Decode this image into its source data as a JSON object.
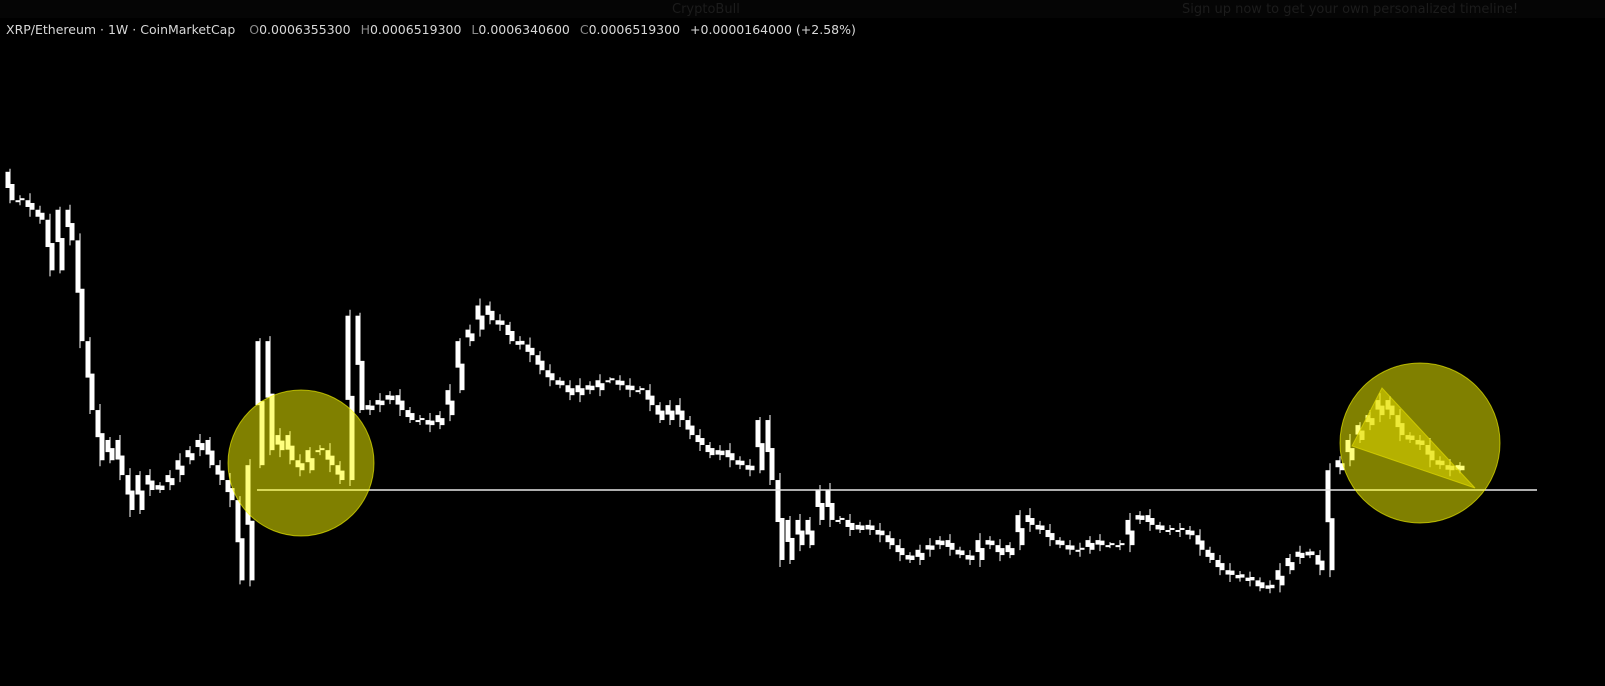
{
  "overlay": {
    "author": "CryptoBull",
    "signup_text": "Sign up now to get your own personalized timeline!"
  },
  "legend": {
    "symbol": "XRP/Ethereum · 1W · CoinMarketCap",
    "open_key": "O",
    "open": "0.0006355300",
    "high_key": "H",
    "high": "0.0006519300",
    "low_key": "L",
    "low": "0.0006340600",
    "close_key": "C",
    "close": "0.0006519300",
    "change": "+0.0000164000 (+2.58%)"
  },
  "colors": {
    "background": "#000000",
    "candle": "#ffffff",
    "highlight_circle": "#ffff00",
    "wedge": "#e0d800",
    "support_line": "#ffffff"
  },
  "chart_data": {
    "type": "candlestick",
    "title": "XRP/Ethereum · 1W · CoinMarketCap",
    "interval": "1W",
    "yscale": "log",
    "ylim": [
      0.0003,
      0.0035
    ],
    "grid": false,
    "closes": [
      0.0024,
      0.0024,
      0.00229,
      0.00218,
      0.0017,
      0.00229,
      0.00197,
      0.0012,
      0.000855,
      0.000668,
      0.000738,
      0.000621,
      0.000523,
      0.000621,
      0.000577,
      0.000591,
      0.000621,
      0.000668,
      0.000702,
      0.000738,
      0.000652,
      0.000606,
      0.000549,
      0.00037,
      0.000652,
      0.0012,
      0.000702,
      0.000756,
      0.000668,
      0.000636,
      0.000702,
      0.000702,
      0.000652,
      0.000606,
      0.00136,
      0.000855,
      0.000876,
      0.000898,
      0.00092,
      0.000855,
      0.000814,
      0.000814,
      0.000794,
      0.000834,
      0.000943,
      0.0012,
      0.00127,
      0.00143,
      0.00133,
      0.0013,
      0.0012,
      0.00118,
      0.00112,
      0.00104,
      0.00099,
      0.000966,
      0.00092,
      0.000966,
      0.000943,
      0.00099,
      0.00099,
      0.000966,
      0.000943,
      0.000943,
      0.000876,
      0.000814,
      0.000876,
      0.000814,
      0.000756,
      0.00072,
      0.000685,
      0.000702,
      0.000668,
      0.000652,
      0.000636,
      0.000814,
      0.000606,
      0.000409,
      0.000498,
      0.00044,
      0.000498,
      0.000577,
      0.000498,
      0.000498,
      0.000474,
      0.000486,
      0.000474,
      0.000462,
      0.00044,
      0.000419,
      0.000409,
      0.00043,
      0.00044,
      0.000451,
      0.00043,
      0.000419,
      0.000409,
      0.000451,
      0.00044,
      0.000419,
      0.00044,
      0.00051,
      0.000486,
      0.000474,
      0.000451,
      0.00044,
      0.00043,
      0.00043,
      0.000451,
      0.00044,
      0.00044,
      0.00044,
      0.000498,
      0.00051,
      0.000486,
      0.000474,
      0.000474,
      0.000474,
      0.000462,
      0.00043,
      0.000409,
      0.000389,
      0.00038,
      0.000375,
      0.00037,
      0.000356,
      0.000361,
      0.000389,
      0.000413,
      0.000426,
      0.000419,
      0.000389,
      0.000636,
      0.000668,
      0.000738,
      0.000794,
      0.000834,
      0.000898,
      0.000834,
      0.000756,
      0.000738,
      0.00072,
      0.000668,
      0.000652,
      0.000636,
      0.000652
    ],
    "last": {
      "open": 0.00063553,
      "high": 0.00065193,
      "low": 0.00063406,
      "close": 0.00065193,
      "change": 1.64e-05,
      "change_pct": 2.58
    },
    "annotations": {
      "support_level": 0.000577,
      "highlights": [
        "circle",
        "circle",
        "falling-wedge"
      ]
    }
  }
}
